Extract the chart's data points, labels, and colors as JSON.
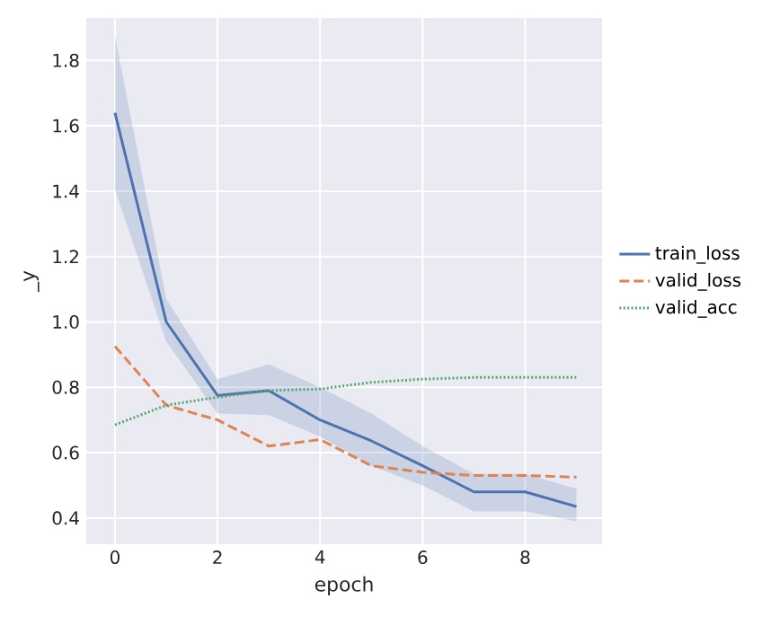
{
  "chart_data": {
    "type": "line",
    "xlabel": "epoch",
    "ylabel": "_y",
    "x": [
      0,
      1,
      2,
      3,
      4,
      5,
      6,
      7,
      8,
      9
    ],
    "series": [
      {
        "name": "train_loss",
        "color": "#4c72b0",
        "line_style": "solid",
        "values": [
          1.64,
          1.0,
          0.775,
          0.79,
          0.7,
          0.636,
          0.56,
          0.48,
          0.48,
          0.435
        ],
        "lower": [
          1.405,
          0.94,
          0.72,
          0.715,
          0.65,
          0.56,
          0.5,
          0.42,
          0.42,
          0.39
        ],
        "upper": [
          1.875,
          1.07,
          0.825,
          0.87,
          0.8,
          0.72,
          0.62,
          0.535,
          0.535,
          0.49
        ]
      },
      {
        "name": "valid_loss",
        "color": "#dd8452",
        "line_style": "dashed",
        "values": [
          0.925,
          0.745,
          0.7,
          0.62,
          0.64,
          0.56,
          0.54,
          0.53,
          0.53,
          0.525
        ]
      },
      {
        "name": "valid_acc",
        "color": "#55a868",
        "line_style": "dotted",
        "values": [
          0.685,
          0.745,
          0.77,
          0.79,
          0.795,
          0.815,
          0.825,
          0.83,
          0.83,
          0.83
        ]
      }
    ],
    "xlim": [
      -0.56,
      9.5
    ],
    "ylim": [
      0.32,
      1.93
    ],
    "xticks": [
      0,
      2,
      4,
      6,
      8
    ],
    "yticks": [
      0.4,
      0.6,
      0.8,
      {
        "value": 1.0,
        "label": "1.0"
      },
      1.2,
      1.4,
      1.6,
      1.8
    ],
    "grid": true,
    "legend": "right"
  }
}
